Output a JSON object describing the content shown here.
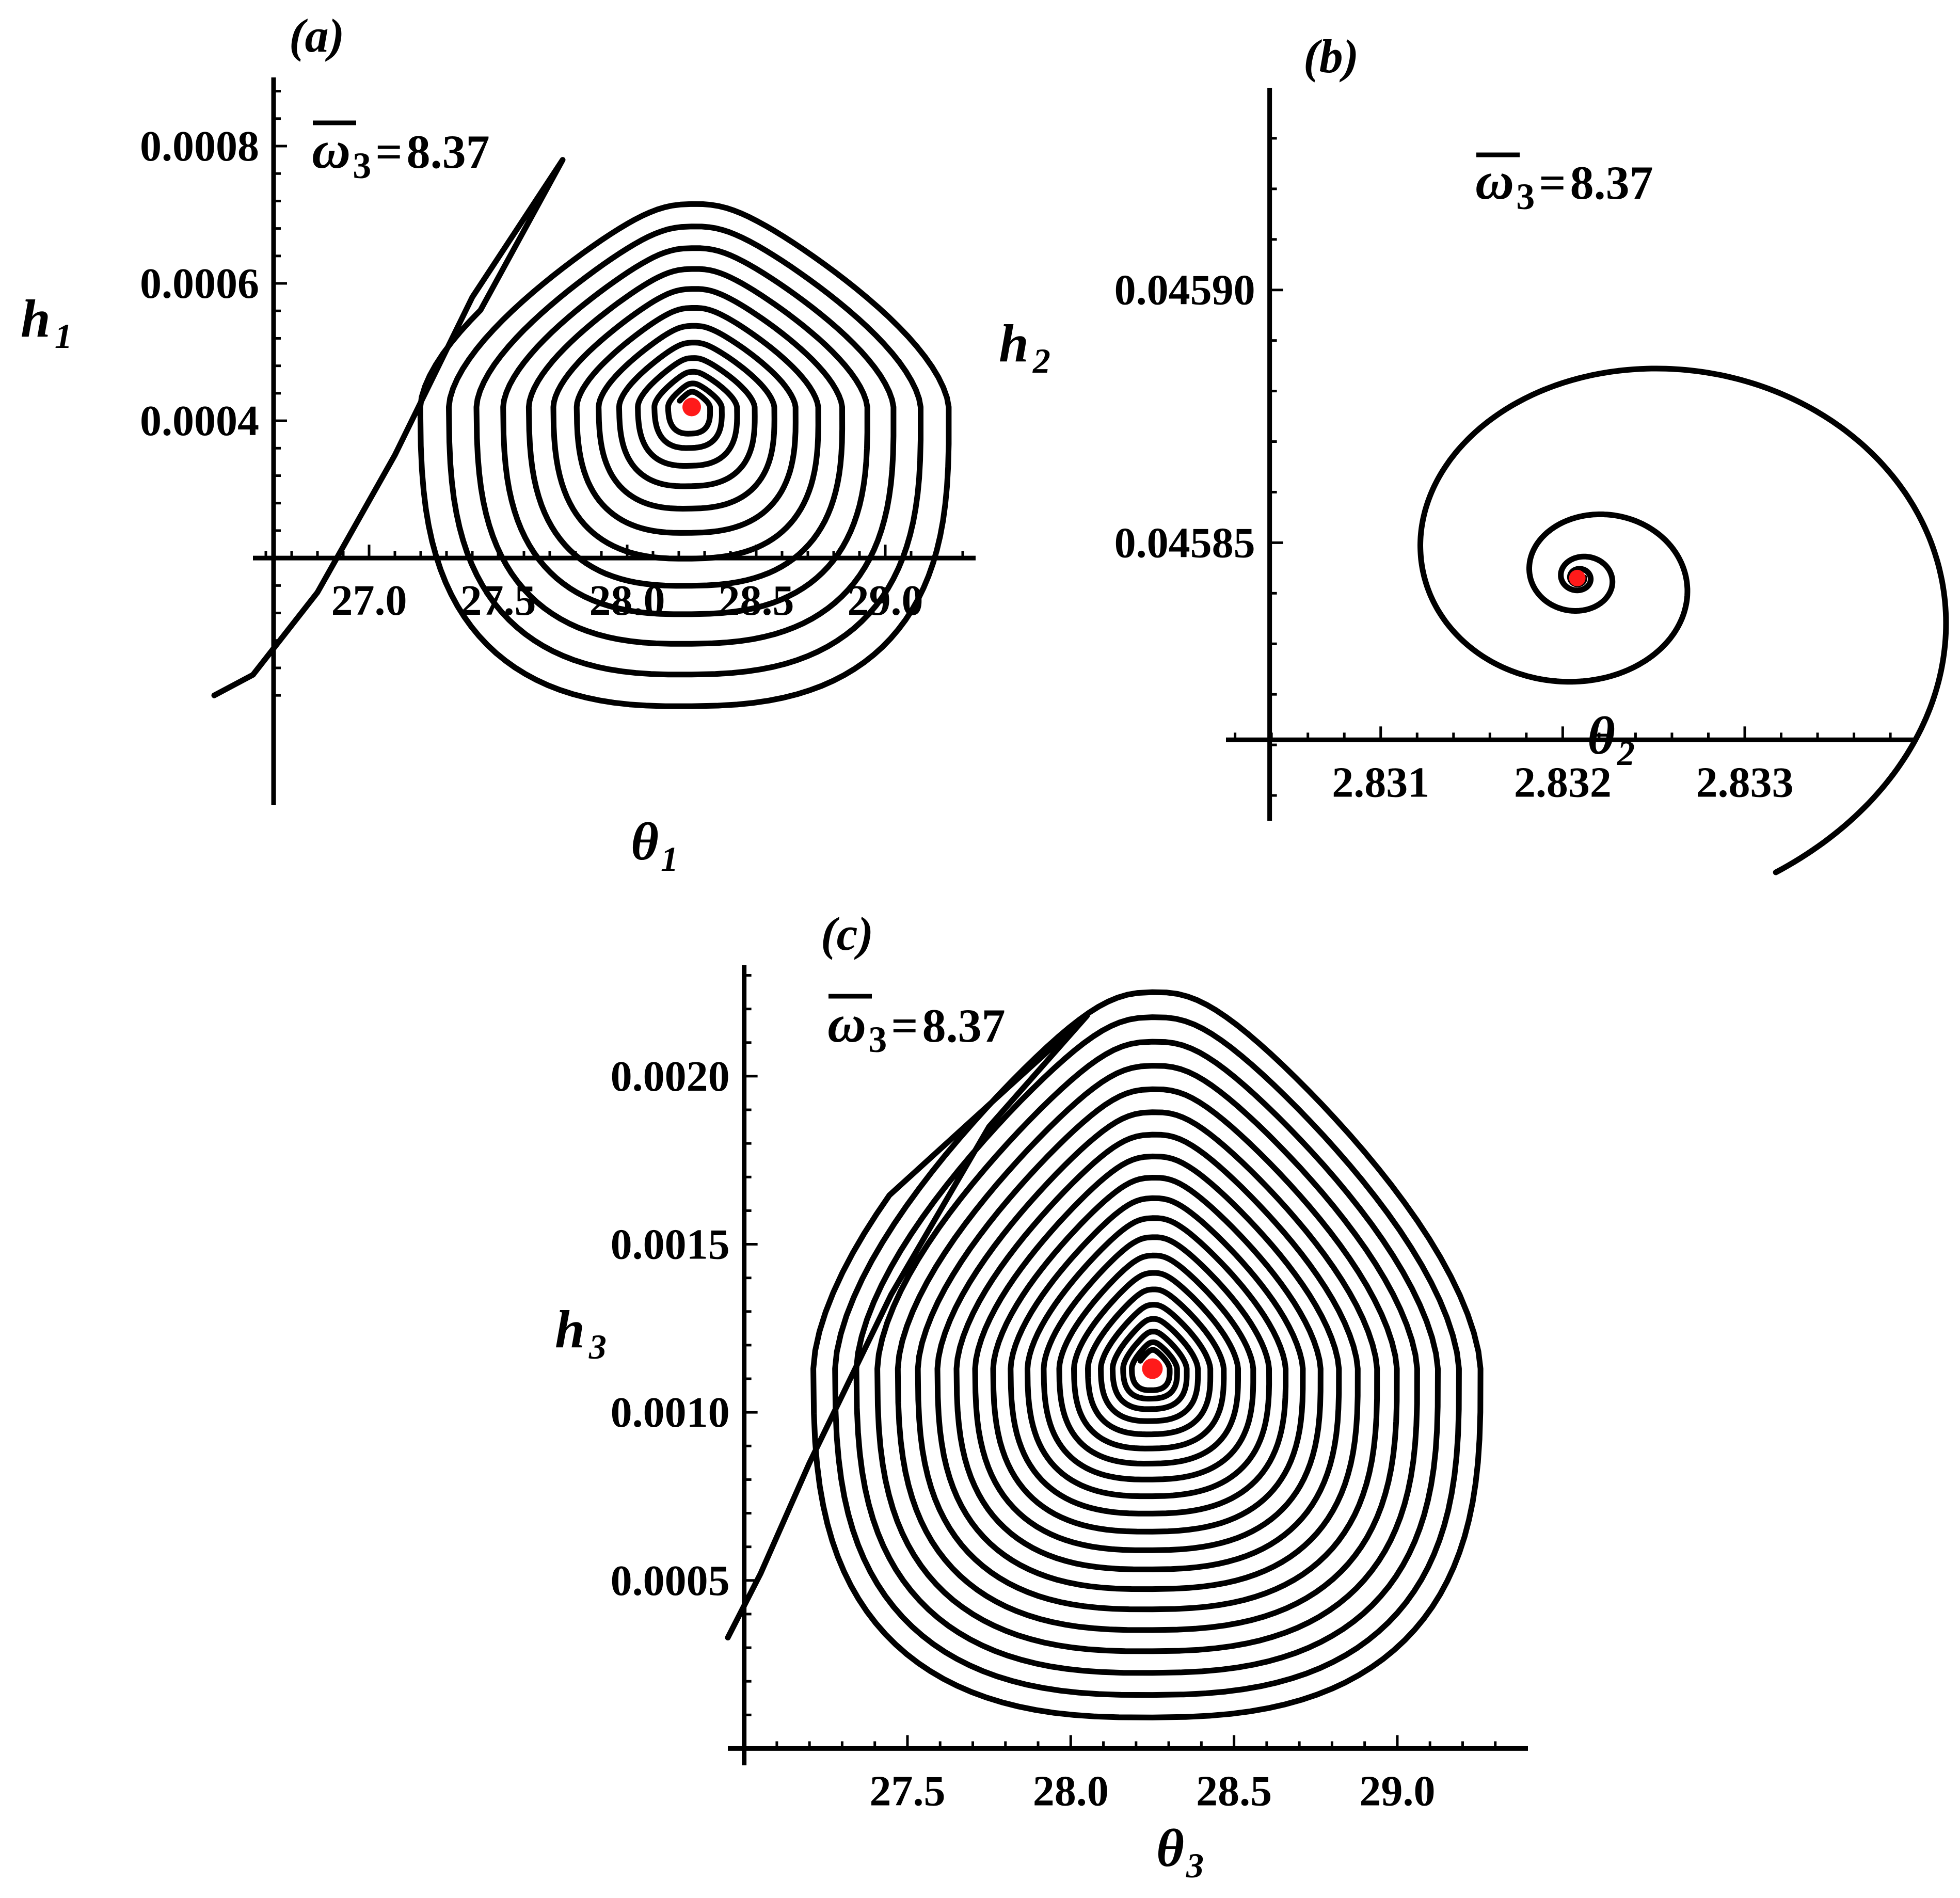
{
  "annotation": {
    "symbol": "ω",
    "subscript": "3",
    "equals": "=",
    "value": "8.37"
  },
  "chart_data": [
    {
      "panel": "(a)",
      "type": "line",
      "xlabel": "θ",
      "xlabel_sub": "1",
      "ylabel": "h",
      "ylabel_sub": "1",
      "xlim": [
        26.55,
        29.35
      ],
      "ylim": [
        -0.00016,
        0.0009
      ],
      "xticks": [
        27.0,
        27.5,
        28.0,
        28.5,
        29.0
      ],
      "xtick_labels": [
        "27.0",
        "27.5",
        "28.0",
        "28.5",
        "29.0"
      ],
      "yticks": [
        0.0004,
        0.0006,
        0.0008
      ],
      "ytick_labels": [
        "0.0004",
        "0.0006",
        "0.0008"
      ],
      "x_axis_at_y": 0.0002,
      "y_axis_at_x": 26.63,
      "equilibrium": {
        "x": 28.25,
        "y": 0.00042
      },
      "trajectory": {
        "kind": "converging-spiral",
        "loops": 12,
        "start": {
          "x": 26.45,
          "y": 8e-05
        },
        "right_extent": 29.3,
        "bottom": -0.00015,
        "top": 0.00085
      }
    },
    {
      "panel": "(b)",
      "type": "line",
      "xlabel": "θ",
      "xlabel_sub": "2",
      "ylabel": "h",
      "ylabel_sub": "2",
      "xlim": [
        2.83015,
        2.83395
      ],
      "ylim": [
        0.045795,
        0.04594
      ],
      "xticks": [
        2.831,
        2.832,
        2.833
      ],
      "xtick_labels": [
        "2.831",
        "2.832",
        "2.833"
      ],
      "yticks": [
        0.04585,
        0.0459
      ],
      "ytick_labels": [
        "0.04585",
        "0.04590"
      ],
      "x_axis_at_y": 0.045811,
      "y_axis_at_x": 2.83039,
      "equilibrium": {
        "x": 2.83208,
        "y": 0.045843
      },
      "trajectory": {
        "kind": "converging-spiral",
        "loops": 4,
        "start": {
          "x": 2.83065,
          "y": 0.045795
        }
      }
    },
    {
      "panel": "(c)",
      "type": "line",
      "xlabel": "θ",
      "xlabel_sub": "3",
      "ylabel": "h",
      "ylabel_sub": "3",
      "xlim": [
        26.95,
        29.4
      ],
      "ylim": [
        -5e-05,
        0.00233
      ],
      "xticks": [
        27.5,
        28.0,
        28.5,
        29.0
      ],
      "xtick_labels": [
        "27.5",
        "28.0",
        "28.5",
        "29.0"
      ],
      "yticks": [
        0.0005,
        0.001,
        0.0015,
        0.002
      ],
      "ytick_labels": [
        "0.0005",
        "0.0010",
        "0.0015",
        "0.0020"
      ],
      "x_axis_at_y": 0.0,
      "y_axis_at_x": 27.0,
      "equilibrium": {
        "x": 28.25,
        "y": 0.00113
      },
      "trajectory": {
        "kind": "converging-spiral",
        "loops": 20,
        "start": {
          "x": 26.95,
          "y": 0.00033
        },
        "right_extent": 29.3,
        "bottom": 0.00014,
        "top": 0.00222
      }
    }
  ]
}
